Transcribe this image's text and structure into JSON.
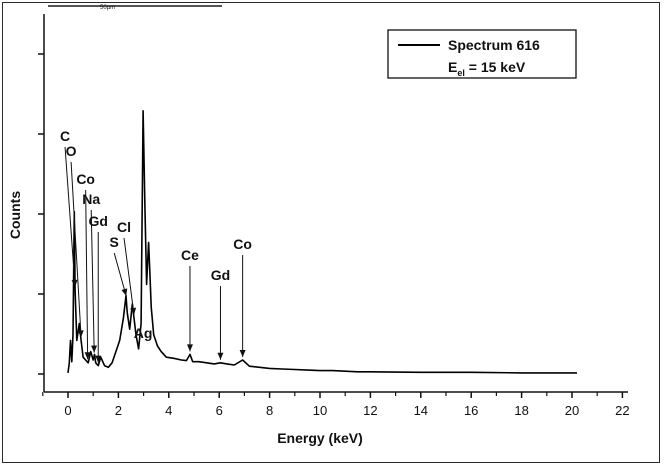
{
  "scale_bar": {
    "label": "50µm"
  },
  "chart_data": {
    "type": "line",
    "xlabel": "Energy (keV)",
    "ylabel": "Counts",
    "xlim": [
      -1,
      22
    ],
    "xticks": [
      0,
      2,
      4,
      6,
      8,
      10,
      12,
      14,
      16,
      18,
      20,
      22
    ],
    "grid": false,
    "legend": {
      "placement": "top-right",
      "entries": [
        "Spectrum 616"
      ],
      "subtitle_main": "E",
      "subtitle_sub": "el",
      "subtitle_rest": " = 15 keV"
    },
    "series": [
      {
        "name": "Spectrum 616",
        "color": "#000000",
        "x": [
          0.0,
          0.05,
          0.1,
          0.15,
          0.2,
          0.25,
          0.28,
          0.35,
          0.45,
          0.52,
          0.6,
          0.7,
          0.8,
          0.9,
          1.0,
          1.05,
          1.1,
          1.2,
          1.3,
          1.45,
          1.6,
          1.75,
          1.9,
          2.05,
          2.2,
          2.3,
          2.35,
          2.45,
          2.55,
          2.62,
          2.7,
          2.8,
          2.9,
          2.98,
          3.05,
          3.12,
          3.2,
          3.25,
          3.3,
          3.4,
          3.55,
          3.7,
          3.9,
          4.2,
          4.5,
          4.7,
          4.84,
          4.95,
          5.2,
          5.5,
          5.8,
          6.05,
          6.3,
          6.6,
          6.93,
          7.2,
          7.6,
          8.0,
          8.5,
          9.0,
          9.5,
          10.0,
          10.5,
          11.0,
          11.5,
          12.0,
          14.0,
          16.0,
          18.0,
          20.2
        ],
        "y": [
          2,
          20,
          60,
          22,
          70,
          290,
          150,
          60,
          90,
          60,
          30,
          25,
          20,
          40,
          25,
          35,
          20,
          15,
          30,
          15,
          12,
          20,
          40,
          60,
          100,
          140,
          110,
          80,
          125,
          100,
          70,
          45,
          90,
          470,
          300,
          160,
          235,
          180,
          120,
          70,
          50,
          40,
          30,
          28,
          25,
          24,
          35,
          22,
          22,
          20,
          18,
          20,
          18,
          16,
          25,
          14,
          12,
          10,
          9,
          8,
          7,
          6,
          6,
          5,
          4,
          4,
          3,
          3,
          2,
          2
        ]
      }
    ],
    "annotations": [
      {
        "label": "C",
        "x": 0.28
      },
      {
        "label": "O",
        "x": 0.52
      },
      {
        "label": "Co",
        "x": 0.78
      },
      {
        "label": "Na",
        "x": 1.04
      },
      {
        "label": "Gd",
        "x": 1.2
      },
      {
        "label": "S",
        "x": 2.31
      },
      {
        "label": "Cl",
        "x": 2.62
      },
      {
        "label": "Ag",
        "x": 2.98
      },
      {
        "label": "Ce",
        "x": 4.84
      },
      {
        "label": "Gd",
        "x": 6.05
      },
      {
        "label": "Co",
        "x": 6.93
      }
    ]
  }
}
